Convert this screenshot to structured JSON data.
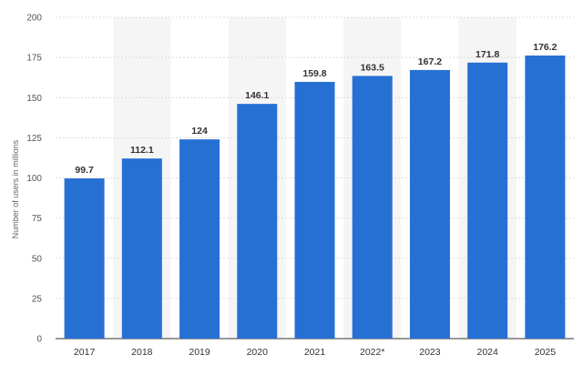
{
  "chart_data": {
    "type": "bar",
    "categories": [
      "2017",
      "2018",
      "2019",
      "2020",
      "2021",
      "2022*",
      "2023",
      "2024",
      "2025"
    ],
    "values": [
      99.7,
      112.1,
      124,
      146.1,
      159.8,
      163.5,
      167.2,
      171.8,
      176.2
    ],
    "value_labels": [
      "99.7",
      "112.1",
      "124",
      "146.1",
      "159.8",
      "163.5",
      "167.2",
      "171.8",
      "176.2"
    ],
    "ylabel": "Number of users in millions",
    "xlabel": "",
    "title": "",
    "ylim": [
      0,
      200
    ],
    "yticks": [
      0,
      25,
      50,
      75,
      100,
      125,
      150,
      175,
      200
    ],
    "grid": true,
    "colors": {
      "bar": "#2670d4",
      "band": "#f5f5f5",
      "grid": "#dcdcdc"
    }
  }
}
